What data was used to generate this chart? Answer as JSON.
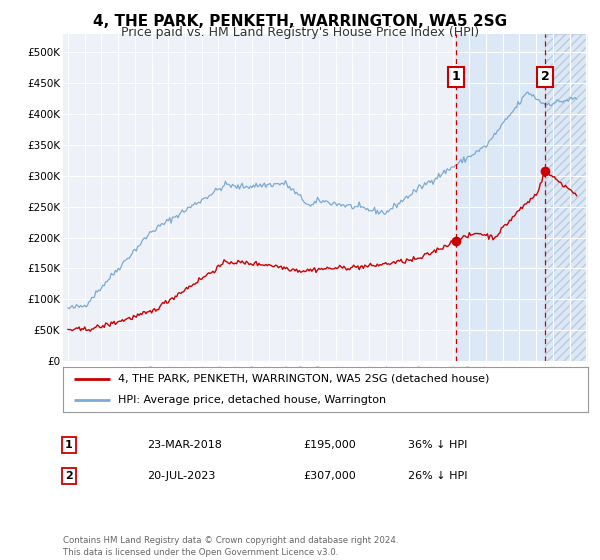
{
  "title": "4, THE PARK, PENKETH, WARRINGTON, WA5 2SG",
  "subtitle": "Price paid vs. HM Land Registry's House Price Index (HPI)",
  "legend_red": "4, THE PARK, PENKETH, WARRINGTON, WA5 2SG (detached house)",
  "legend_blue": "HPI: Average price, detached house, Warrington",
  "annotation1_label": "1",
  "annotation1_date": "23-MAR-2018",
  "annotation1_price": "£195,000",
  "annotation1_pct": "36% ↓ HPI",
  "annotation1_year": 2018.22,
  "annotation1_value": 195000,
  "annotation2_label": "2",
  "annotation2_date": "20-JUL-2023",
  "annotation2_price": "£307,000",
  "annotation2_pct": "26% ↓ HPI",
  "annotation2_year": 2023.55,
  "annotation2_value": 307000,
  "yticks": [
    0,
    50000,
    100000,
    150000,
    200000,
    250000,
    300000,
    350000,
    400000,
    450000,
    500000
  ],
  "ylim": [
    0,
    530000
  ],
  "x_start_year": 1995,
  "x_end_year": 2026,
  "footer": "Contains HM Land Registry data © Crown copyright and database right 2024.\nThis data is licensed under the Open Government Licence v3.0.",
  "background_color": "#ffffff",
  "plot_bg_color": "#eef2f8",
  "shade1_color": "#dce8f5",
  "hatch_color": "#c8d8eb",
  "grid_color": "#ffffff",
  "red_color": "#cc0000",
  "blue_color": "#7baad4"
}
